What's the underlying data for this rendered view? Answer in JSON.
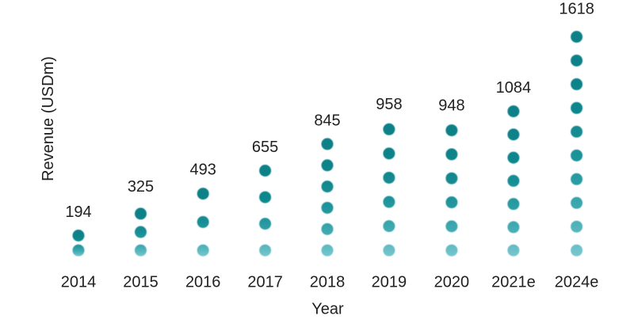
{
  "chart_data": {
    "type": "bar",
    "variant": "stacked-dot-pictogram",
    "title": "",
    "xlabel": "Year",
    "ylabel": "Revenue (USDm)",
    "categories": [
      "2014",
      "2015",
      "2016",
      "2017",
      "2018",
      "2019",
      "2020",
      "2021e",
      "2024e"
    ],
    "values": [
      194,
      325,
      493,
      655,
      845,
      958,
      948,
      1084,
      1618
    ],
    "value_labels": [
      "194",
      "325",
      "493",
      "655",
      "845",
      "958",
      "948",
      "1084",
      "1618"
    ],
    "dot_counts": [
      2,
      3,
      3,
      4,
      6,
      6,
      6,
      7,
      10
    ],
    "ylim": [
      0,
      1870
    ],
    "grid": false,
    "legend": "none",
    "colors": {
      "dot_gradient_top": "#0c8187",
      "dot_gradient_bottom": "#79c7cf",
      "text": "#212121",
      "background": "#ffffff"
    }
  }
}
